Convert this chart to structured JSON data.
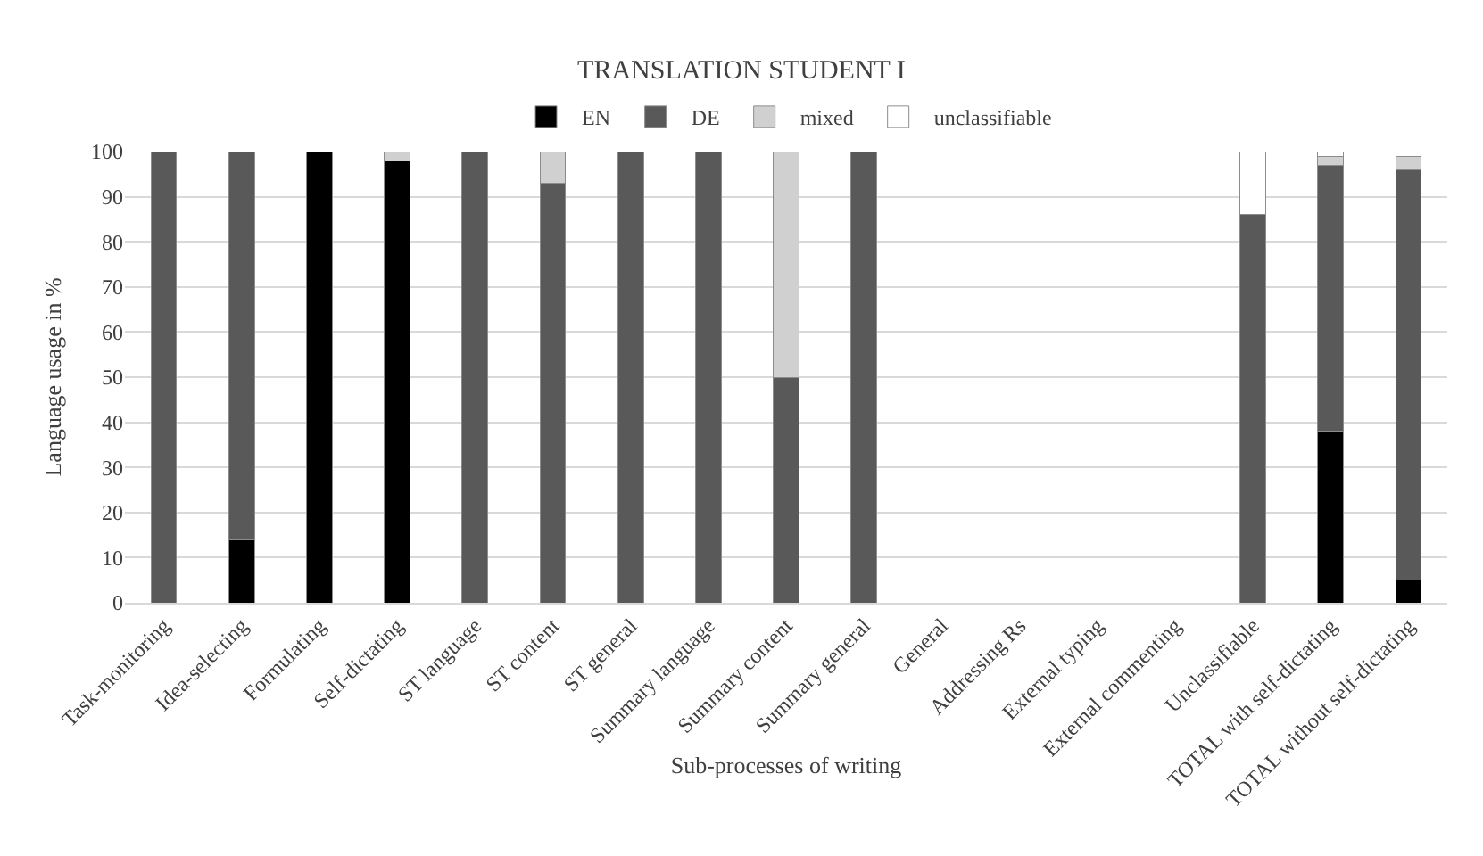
{
  "chart_data": {
    "type": "bar",
    "title": "TRANSLATION STUDENT I",
    "xlabel": "Sub-processes of writing",
    "ylabel": "Language usage in %",
    "categories": [
      "Task-monitoring",
      "Idea-selecting",
      "Formulating",
      "Self-dictating",
      "ST language",
      "ST content",
      "ST general",
      "Summary language",
      "Summary content",
      "Summary general",
      "General",
      "Addressing Rs",
      "External typing",
      "External commenting",
      "Unclassifiable",
      "TOTAL with self-dictating",
      "TOTAL without self-dictating"
    ],
    "stacked": true,
    "ylim": [
      0,
      100
    ],
    "yticks": [
      0,
      10,
      20,
      30,
      40,
      50,
      60,
      70,
      80,
      90,
      100
    ],
    "grid": "y",
    "legend": "top",
    "series": [
      {
        "name": "EN",
        "color": "#000000",
        "values": [
          null,
          14,
          100,
          98,
          null,
          null,
          null,
          null,
          null,
          null,
          null,
          null,
          null,
          null,
          null,
          38,
          5
        ]
      },
      {
        "name": "DE",
        "color": "#595959",
        "values": [
          100,
          86,
          null,
          null,
          100,
          93,
          100,
          100,
          50,
          100,
          null,
          null,
          null,
          null,
          86,
          59,
          91
        ]
      },
      {
        "name": "mixed",
        "color": "#d0d0d0",
        "values": [
          null,
          null,
          null,
          2,
          null,
          7,
          null,
          null,
          50,
          null,
          null,
          null,
          null,
          null,
          null,
          2,
          3
        ]
      },
      {
        "name": "unclassifiable",
        "color": "#ffffff",
        "values": [
          null,
          null,
          null,
          null,
          null,
          null,
          null,
          null,
          null,
          null,
          null,
          null,
          null,
          null,
          14,
          1,
          1
        ]
      }
    ]
  }
}
